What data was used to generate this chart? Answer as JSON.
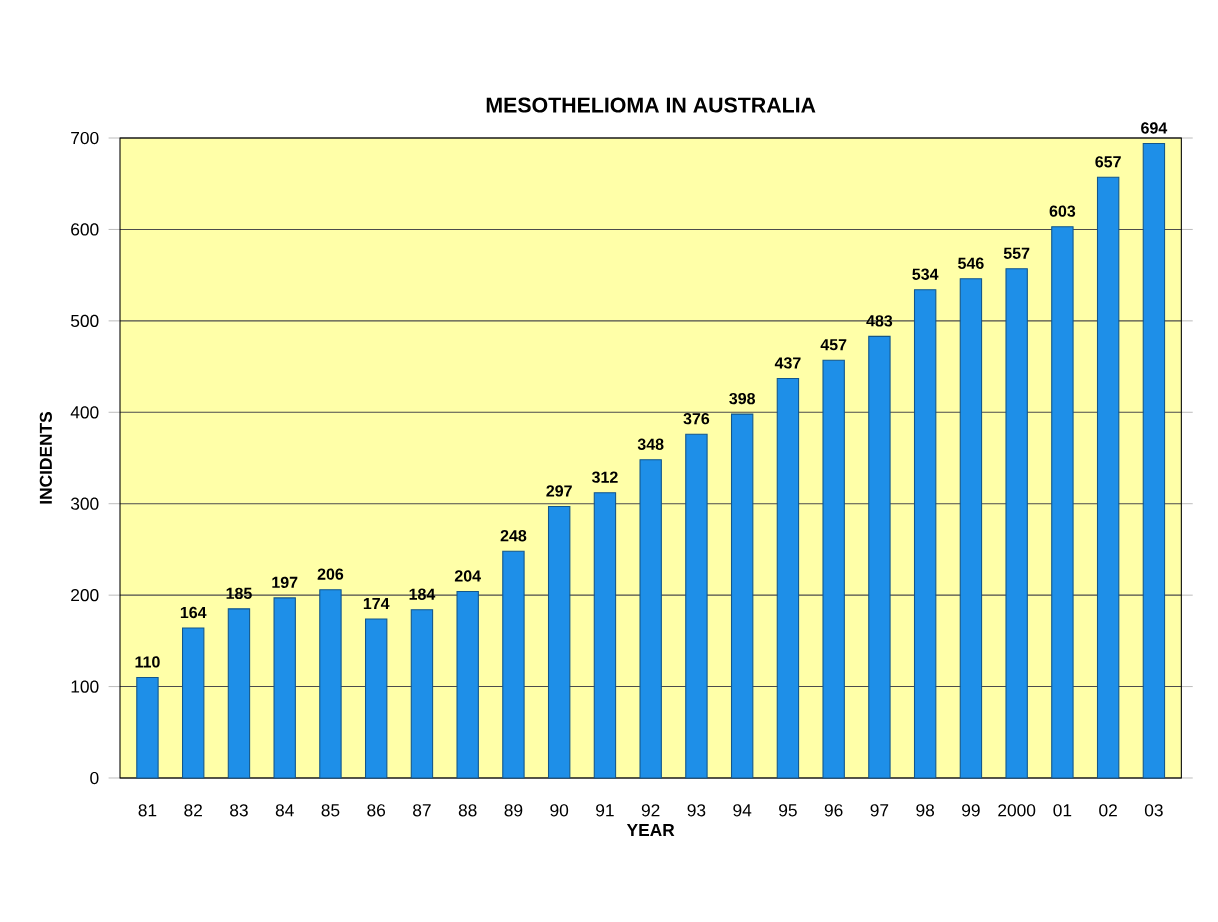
{
  "chart_data": {
    "type": "bar",
    "title": "MESOTHELIOMA IN AUSTRALIA",
    "xlabel": "YEAR",
    "ylabel": "INCIDENTS",
    "categories": [
      "81",
      "82",
      "83",
      "84",
      "85",
      "86",
      "87",
      "88",
      "89",
      "90",
      "91",
      "92",
      "93",
      "94",
      "95",
      "96",
      "97",
      "98",
      "99",
      "2000",
      "01",
      "02",
      "03"
    ],
    "values": [
      110,
      164,
      185,
      197,
      206,
      174,
      184,
      204,
      248,
      297,
      312,
      348,
      376,
      398,
      437,
      457,
      483,
      534,
      546,
      557,
      603,
      657,
      694
    ],
    "color": "#1e8fe8",
    "ylim": [
      0,
      700
    ],
    "yticks": [
      0,
      100,
      200,
      300,
      400,
      500,
      600,
      700
    ],
    "grid": "y",
    "data_labels": true
  }
}
